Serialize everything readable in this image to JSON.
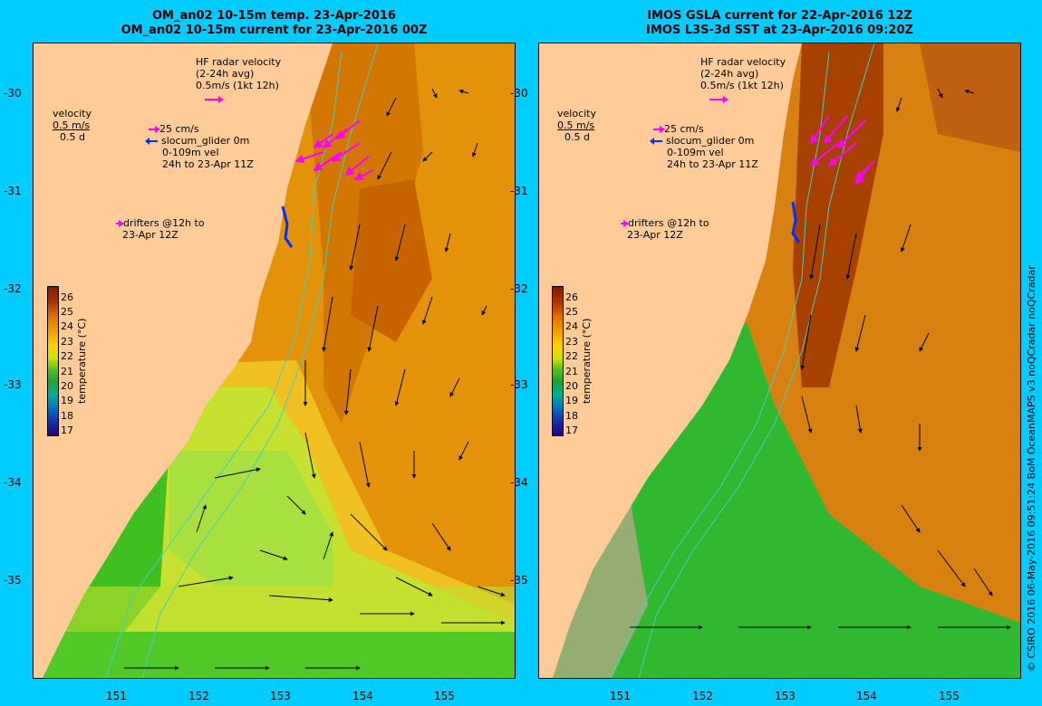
{
  "left_panel": {
    "title_line1": "OM_an02 10-15m temp. 23-Apr-2016",
    "title_line2": "OM_an02 10-15m current for 23-Apr-2016 00Z"
  },
  "right_panel": {
    "title_line1": "IMOS GSLA current for 22-Apr-2016 12Z",
    "title_line2": "IMOS L3S-3d SST at 23-Apr-2016 09:20Z"
  },
  "y_axis": [
    "-30",
    "-31",
    "-32",
    "-33",
    "-34",
    "-35"
  ],
  "x_axis": [
    "151",
    "152",
    "153",
    "154",
    "155"
  ],
  "legend": {
    "hf_line1": "HF radar velocity",
    "hf_line2": "(2-24h avg)",
    "hf_line3": "0.5m/s (1kt 12h)",
    "vel_line1": "velocity",
    "vel_line2": "0.5 m/s",
    "vel_line3": "0.5 d",
    "glider_line1": "25 cm/s",
    "glider_line2": "slocum_glider 0m",
    "glider_line3": "0-109m vel",
    "glider_line4": "24h to 23-Apr 11Z",
    "drifters_line1": "drifters @12h to",
    "drifters_line2": "23-Apr 12Z"
  },
  "colorbar": {
    "title": "temperature (°C)",
    "ticks": [
      "26",
      "25",
      "24",
      "23",
      "22",
      "21",
      "20",
      "19",
      "18",
      "17"
    ]
  },
  "credit": "© CSIRO 2016   06-May-2016 09:51:24 BoM OceanMAPS v3 noQCradar noQCradar",
  "colors": {
    "land": "#ffcc99",
    "background": "#00ccff",
    "hf_radar": "#ff00ff",
    "glider": "#0030ff",
    "isobath": "#40d0c0",
    "no_data": "#c0a890"
  }
}
